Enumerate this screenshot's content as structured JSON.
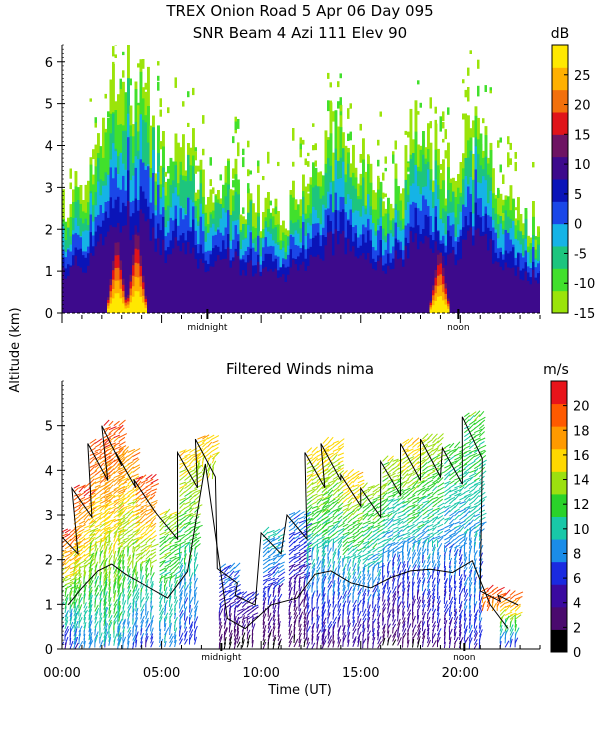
{
  "header": {
    "title_line1": "TREX Onion Road   5 Apr 06 Day 095",
    "title_line2": "SNR Beam 4 Azi 111 Elev 90"
  },
  "shared_ylabel": "Altitude (km)",
  "chart_data": [
    {
      "type": "heatmap",
      "title": "SNR Beam 4 Azi 111 Elev 90",
      "ylabel": "Altitude (km)",
      "xlim": [
        0,
        24
      ],
      "ylim": [
        0,
        6.4
      ],
      "yticks": [
        0,
        1,
        2,
        3,
        4,
        5,
        6
      ],
      "x_annotations": [
        {
          "x": 7.3,
          "text": "midnight"
        },
        {
          "x": 19.9,
          "text": "noon"
        }
      ],
      "colorbar": {
        "unit": "dB",
        "range": [
          -15,
          30
        ],
        "ticks": [
          -15,
          -10,
          -5,
          0,
          5,
          10,
          15,
          20,
          25
        ],
        "colors": [
          "#9be40a",
          "#41e02c",
          "#1dc57e",
          "#15b3e6",
          "#1a47e8",
          "#0a14b8",
          "#3d0a8c",
          "#6e1463",
          "#e0141a",
          "#f2700c",
          "#ffb000",
          "#ffe800"
        ]
      },
      "profile": {
        "x_hours": [
          0,
          1,
          2,
          2.8,
          3.6,
          4.3,
          5,
          5.8,
          6.5,
          7,
          7.5,
          8.2,
          9,
          10,
          11,
          12,
          13,
          14,
          15,
          16,
          17,
          18,
          18.8,
          19.5,
          20.3,
          21,
          21.8,
          22.5,
          23,
          24
        ],
        "top_km": [
          2.5,
          3.2,
          4.5,
          5.5,
          6.1,
          4.8,
          4.0,
          3.8,
          4.2,
          3.0,
          3.2,
          3.4,
          3.0,
          2.6,
          2.4,
          3.0,
          4.0,
          4.6,
          3.6,
          3.0,
          3.4,
          4.8,
          3.8,
          3.2,
          4.2,
          5.2,
          3.4,
          2.8,
          2.4,
          2.2
        ]
      },
      "hot_cores": [
        {
          "x": 2.7,
          "top_km": 1.9,
          "label_db": 25
        },
        {
          "x": 3.7,
          "top_km": 2.1,
          "label_db": 20
        },
        {
          "x": 18.9,
          "top_km": 1.6,
          "label_db": 25
        }
      ]
    },
    {
      "type": "scatter",
      "title": "Filtered Winds nima",
      "xlabel": "Time (UT)",
      "ylabel": "Altitude (km)",
      "xlim": [
        0,
        24
      ],
      "ylim": [
        0,
        6
      ],
      "xticks": [
        {
          "x": 0,
          "label": "00:00"
        },
        {
          "x": 5,
          "label": "05:00"
        },
        {
          "x": 10,
          "label": "10:00"
        },
        {
          "x": 15,
          "label": "15:00"
        },
        {
          "x": 20,
          "label": "20:00"
        }
      ],
      "yticks": [
        0,
        1,
        2,
        3,
        4,
        5
      ],
      "x_annotations": [
        {
          "x": 8.0,
          "text": "midnight"
        },
        {
          "x": 20.2,
          "text": "noon"
        }
      ],
      "colorbar": {
        "unit": "m/s",
        "range": [
          0,
          22
        ],
        "ticks": [
          0,
          2,
          4,
          6,
          8,
          10,
          12,
          14,
          16,
          18,
          20
        ],
        "colors": [
          "#000000",
          "#4a0a6e",
          "#3a0aa0",
          "#1a2ae0",
          "#1a8ce8",
          "#18c8a8",
          "#2ad22a",
          "#9ce010",
          "#ffd800",
          "#ff9a00",
          "#ff5a00",
          "#e8141a"
        ]
      },
      "wind_columns": [
        {
          "x": 0.3,
          "bottom": 0.0,
          "top": 2.6,
          "speed_bottom": 6,
          "speed_top": 20
        },
        {
          "x": 1.0,
          "bottom": 0.0,
          "top": 3.6,
          "speed_bottom": 8,
          "speed_top": 20
        },
        {
          "x": 1.8,
          "bottom": 0.0,
          "top": 4.6,
          "speed_bottom": 8,
          "speed_top": 20
        },
        {
          "x": 2.5,
          "bottom": 0.0,
          "top": 5.0,
          "speed_bottom": 10,
          "speed_top": 20
        },
        {
          "x": 3.2,
          "bottom": 0.0,
          "top": 4.4,
          "speed_bottom": 8,
          "speed_top": 18
        },
        {
          "x": 4.1,
          "bottom": 0.0,
          "top": 3.8,
          "speed_bottom": 6,
          "speed_top": 20
        },
        {
          "x": 5.3,
          "bottom": 0.0,
          "top": 3.0,
          "speed_bottom": 8,
          "speed_top": 14
        },
        {
          "x": 6.3,
          "bottom": 0.1,
          "top": 4.4,
          "speed_bottom": 6,
          "speed_top": 16
        },
        {
          "x": 7.2,
          "bottom": 3.8,
          "top": 4.7,
          "speed_bottom": 14,
          "speed_top": 16
        },
        {
          "x": 8.3,
          "bottom": 0.0,
          "top": 1.8,
          "speed_bottom": 2,
          "speed_top": 8
        },
        {
          "x": 9.2,
          "bottom": 0.0,
          "top": 1.2,
          "speed_bottom": 2,
          "speed_top": 6
        },
        {
          "x": 10.5,
          "bottom": 0.0,
          "top": 2.6,
          "speed_bottom": 2,
          "speed_top": 10
        },
        {
          "x": 11.8,
          "bottom": 0.0,
          "top": 3.0,
          "speed_bottom": 2,
          "speed_top": 8
        },
        {
          "x": 12.7,
          "bottom": 0.0,
          "top": 4.4,
          "speed_bottom": 4,
          "speed_top": 16
        },
        {
          "x": 13.5,
          "bottom": 0.0,
          "top": 4.6,
          "speed_bottom": 4,
          "speed_top": 16
        },
        {
          "x": 14.5,
          "bottom": 0.0,
          "top": 3.9,
          "speed_bottom": 4,
          "speed_top": 16
        },
        {
          "x": 15.5,
          "bottom": 0.0,
          "top": 3.6,
          "speed_bottom": 4,
          "speed_top": 14
        },
        {
          "x": 16.5,
          "bottom": 0.0,
          "top": 4.2,
          "speed_bottom": 2,
          "speed_top": 14
        },
        {
          "x": 17.5,
          "bottom": 0.0,
          "top": 4.6,
          "speed_bottom": 2,
          "speed_top": 16
        },
        {
          "x": 18.5,
          "bottom": 0.0,
          "top": 4.7,
          "speed_bottom": 4,
          "speed_top": 14
        },
        {
          "x": 19.6,
          "bottom": 0.0,
          "top": 4.5,
          "speed_bottom": 4,
          "speed_top": 12
        },
        {
          "x": 20.6,
          "bottom": 0.0,
          "top": 5.2,
          "speed_bottom": 6,
          "speed_top": 12
        },
        {
          "x": 21.5,
          "bottom": 0.8,
          "top": 1.3,
          "speed_bottom": 18,
          "speed_top": 20
        },
        {
          "x": 22.4,
          "bottom": 0.0,
          "top": 1.2,
          "speed_bottom": 6,
          "speed_top": 20
        }
      ]
    }
  ]
}
